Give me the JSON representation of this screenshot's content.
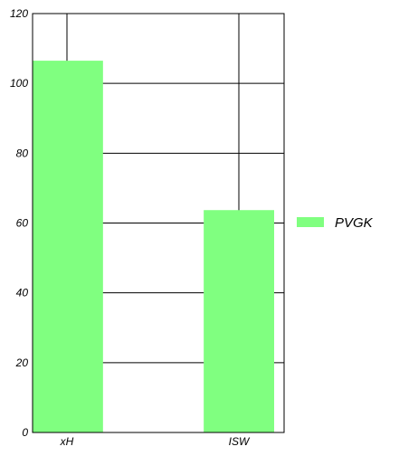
{
  "chart_data": {
    "type": "bar",
    "categories": [
      "xH",
      "ISW"
    ],
    "series": [
      {
        "name": "PVGK",
        "values": [
          106.5,
          63.7
        ],
        "color": "#80ff80"
      }
    ],
    "ylim": [
      0,
      120
    ],
    "yticks": [
      0,
      20,
      40,
      60,
      80,
      100,
      120
    ],
    "grid": true,
    "legend_position": "right"
  }
}
